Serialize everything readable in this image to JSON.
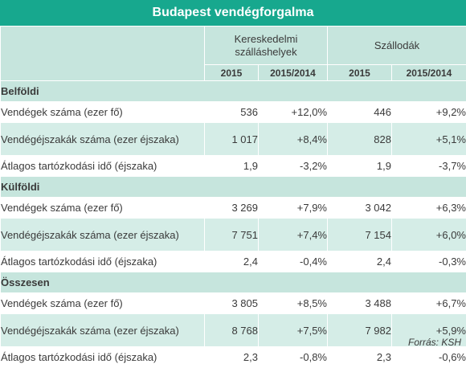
{
  "title": "Budapest vendégforgalma",
  "header": {
    "group1": "Kereskedelmi szálláshelyek",
    "group2": "Szállodák",
    "col_year": "2015",
    "col_change": "2015/2014"
  },
  "sections": [
    {
      "name": "Belföldi",
      "rows": [
        {
          "label": "Vendégek száma (ezer fő)",
          "v1": "536",
          "v2": "+12,0%",
          "v3": "446",
          "v4": "+9,2%"
        },
        {
          "label": "Vendégéjszakák száma (ezer éjszaka)",
          "v1": "1 017",
          "v2": "+8,4%",
          "v3": "828",
          "v4": "+5,1%"
        },
        {
          "label": "Átlagos tartózkodási idő (éjszaka)",
          "v1": "1,9",
          "v2": "-3,2%",
          "v3": "1,9",
          "v4": "-3,7%"
        }
      ]
    },
    {
      "name": "Külföldi",
      "rows": [
        {
          "label": "Vendégek száma (ezer fő)",
          "v1": "3 269",
          "v2": "+7,9%",
          "v3": "3 042",
          "v4": "+6,3%"
        },
        {
          "label": "Vendégéjszakák száma (ezer éjszaka)",
          "v1": "7 751",
          "v2": "+7,4%",
          "v3": "7 154",
          "v4": "+6,0%"
        },
        {
          "label": "Átlagos tartózkodási idő (éjszaka)",
          "v1": "2,4",
          "v2": "-0,4%",
          "v3": "2,4",
          "v4": "-0,3%"
        }
      ]
    },
    {
      "name": "Összesen",
      "rows": [
        {
          "label": "Vendégek száma (ezer fő)",
          "v1": "3 805",
          "v2": "+8,5%",
          "v3": "3 488",
          "v4": "+6,7%"
        },
        {
          "label": "Vendégéjszakák száma (ezer éjszaka)",
          "v1": "8 768",
          "v2": "+7,5%",
          "v3": "7 982",
          "v4": "+5,9%"
        },
        {
          "label": "Átlagos tartózkodási idő (éjszaka)",
          "v1": "2,3",
          "v2": "-0,8%",
          "v3": "2,3",
          "v4": "-0,6%"
        }
      ]
    }
  ],
  "source": "Forrás: KSH"
}
